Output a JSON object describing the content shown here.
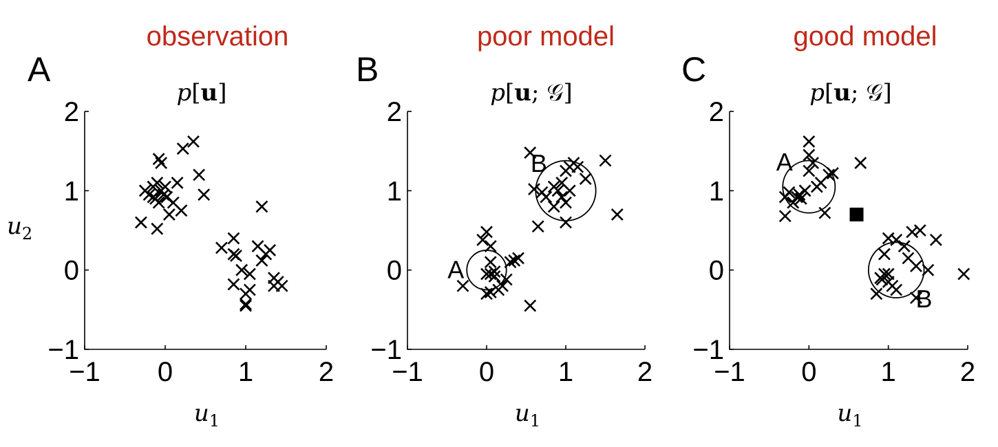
{
  "chart_data": [
    {
      "type": "scatter",
      "panel_letter": "A",
      "heading": "observation",
      "title_parts": [
        {
          "t": "p",
          "s": "i"
        },
        {
          "t": "[",
          "s": "n"
        },
        {
          "t": "u",
          "s": "b"
        },
        {
          "t": "]",
          "s": "n"
        }
      ],
      "xlabel": {
        "base": "u",
        "sub": "1"
      },
      "ylabel": {
        "base": "u",
        "sub": "2"
      },
      "xlim": [
        -1,
        2
      ],
      "ylim": [
        -1,
        2
      ],
      "xticks": [
        "−1",
        "0",
        "1",
        "2"
      ],
      "yticks": [
        "−1",
        "0",
        "1",
        "2"
      ],
      "points": [
        [
          -0.3,
          0.6
        ],
        [
          -0.25,
          1.0
        ],
        [
          -0.2,
          0.95
        ],
        [
          -0.15,
          1.05
        ],
        [
          -0.12,
          0.9
        ],
        [
          -0.1,
          1.1
        ],
        [
          -0.08,
          0.85
        ],
        [
          -0.05,
          1.0
        ],
        [
          -0.02,
          0.95
        ],
        [
          0.0,
          1.05
        ],
        [
          0.02,
          0.92
        ],
        [
          0.05,
          0.7
        ],
        [
          0.1,
          0.85
        ],
        [
          0.15,
          1.1
        ],
        [
          0.2,
          0.75
        ],
        [
          -0.1,
          0.52
        ],
        [
          -0.08,
          1.4
        ],
        [
          -0.05,
          1.35
        ],
        [
          0.22,
          1.53
        ],
        [
          0.35,
          1.62
        ],
        [
          0.42,
          1.2
        ],
        [
          0.48,
          0.95
        ],
        [
          -0.15,
          0.92
        ],
        [
          0.7,
          0.28
        ],
        [
          0.85,
          0.4
        ],
        [
          0.85,
          0.2
        ],
        [
          0.88,
          0.18
        ],
        [
          0.95,
          0.0
        ],
        [
          0.85,
          -0.18
        ],
        [
          1.0,
          -0.3
        ],
        [
          1.0,
          -0.43
        ],
        [
          1.0,
          -0.45
        ],
        [
          1.05,
          -0.05
        ],
        [
          1.05,
          -0.25
        ],
        [
          1.15,
          0.3
        ],
        [
          1.2,
          0.12
        ],
        [
          1.25,
          0.2
        ],
        [
          1.3,
          0.25
        ],
        [
          1.35,
          -0.1
        ],
        [
          1.35,
          -0.2
        ],
        [
          1.4,
          -0.15
        ],
        [
          1.45,
          -0.2
        ],
        [
          1.2,
          0.8
        ]
      ],
      "circles": [],
      "square": null
    },
    {
      "type": "scatter",
      "panel_letter": "B",
      "heading": "poor model",
      "title_parts": [
        {
          "t": "p",
          "s": "i"
        },
        {
          "t": "[",
          "s": "n"
        },
        {
          "t": "u",
          "s": "b"
        },
        {
          "t": "; ",
          "s": "n"
        },
        {
          "t": "𝒢",
          "s": "n"
        },
        {
          "t": "]",
          "s": "n"
        }
      ],
      "xlabel": {
        "base": "u",
        "sub": "1"
      },
      "ylabel": null,
      "xlim": [
        -1,
        2
      ],
      "ylim": [
        -1,
        2
      ],
      "xticks": [
        "−1",
        "0",
        "1",
        "2"
      ],
      "yticks": [
        "−1",
        "0",
        "1",
        "2"
      ],
      "points": [
        [
          -0.3,
          -0.2
        ],
        [
          -0.05,
          0.38
        ],
        [
          0.0,
          0.48
        ],
        [
          0.05,
          0.3
        ],
        [
          0.05,
          0.1
        ],
        [
          0.0,
          -0.05
        ],
        [
          0.05,
          -0.05
        ],
        [
          0.1,
          -0.02
        ],
        [
          0.1,
          -0.08
        ],
        [
          0.0,
          -0.3
        ],
        [
          0.05,
          -0.28
        ],
        [
          0.15,
          -0.25
        ],
        [
          0.2,
          -0.2
        ],
        [
          0.25,
          -0.12
        ],
        [
          0.3,
          0.1
        ],
        [
          0.4,
          0.15
        ],
        [
          0.35,
          0.12
        ],
        [
          0.55,
          -0.45
        ],
        [
          0.55,
          1.48
        ],
        [
          0.6,
          1.02
        ],
        [
          0.65,
          0.55
        ],
        [
          0.7,
          0.98
        ],
        [
          0.75,
          0.92
        ],
        [
          0.85,
          0.8
        ],
        [
          0.9,
          1.0
        ],
        [
          0.95,
          1.1
        ],
        [
          1.0,
          0.6
        ],
        [
          1.0,
          0.85
        ],
        [
          1.05,
          1.0
        ],
        [
          1.0,
          1.25
        ],
        [
          1.05,
          1.3
        ],
        [
          1.1,
          1.35
        ],
        [
          1.15,
          1.3
        ],
        [
          1.25,
          1.15
        ],
        [
          1.5,
          1.38
        ],
        [
          1.65,
          0.7
        ],
        [
          0.85,
          1.05
        ],
        [
          0.95,
          0.92
        ]
      ],
      "circles": [
        {
          "label": "A",
          "cx": 0.0,
          "cy": 0.0,
          "r": 0.25,
          "label_side": "left"
        },
        {
          "label": "B",
          "cx": 1.0,
          "cy": 1.0,
          "r": 0.38,
          "label_side": "top-left"
        }
      ],
      "square": null
    },
    {
      "type": "scatter",
      "panel_letter": "C",
      "heading": "good model",
      "title_parts": [
        {
          "t": "p",
          "s": "i"
        },
        {
          "t": "[",
          "s": "n"
        },
        {
          "t": "u",
          "s": "b"
        },
        {
          "t": "; ",
          "s": "n"
        },
        {
          "t": "𝒢",
          "s": "n"
        },
        {
          "t": "]",
          "s": "n"
        }
      ],
      "xlabel": {
        "base": "u",
        "sub": "1"
      },
      "ylabel": null,
      "xlim": [
        -1,
        2
      ],
      "ylim": [
        -1,
        2
      ],
      "xticks": [
        "−1",
        "0",
        "1",
        "2"
      ],
      "yticks": [
        "−1",
        "0",
        "1",
        "2"
      ],
      "points": [
        [
          -0.3,
          0.68
        ],
        [
          -0.3,
          0.92
        ],
        [
          -0.25,
          0.98
        ],
        [
          -0.2,
          0.85
        ],
        [
          -0.15,
          0.92
        ],
        [
          -0.12,
          0.95
        ],
        [
          -0.1,
          0.9
        ],
        [
          -0.05,
          1.0
        ],
        [
          0.0,
          1.25
        ],
        [
          0.0,
          1.45
        ],
        [
          0.0,
          1.62
        ],
        [
          0.05,
          1.35
        ],
        [
          0.1,
          1.05
        ],
        [
          0.15,
          1.1
        ],
        [
          0.2,
          0.72
        ],
        [
          0.25,
          1.2
        ],
        [
          0.3,
          1.22
        ],
        [
          0.65,
          1.35
        ],
        [
          0.85,
          -0.3
        ],
        [
          0.9,
          -0.1
        ],
        [
          0.95,
          -0.05
        ],
        [
          0.95,
          0.2
        ],
        [
          1.0,
          0.4
        ],
        [
          1.0,
          -0.15
        ],
        [
          1.05,
          -0.2
        ],
        [
          1.1,
          0.38
        ],
        [
          1.1,
          -0.25
        ],
        [
          1.2,
          0.3
        ],
        [
          1.25,
          0.15
        ],
        [
          1.3,
          0.48
        ],
        [
          1.35,
          0.05
        ],
        [
          1.35,
          -0.35
        ],
        [
          1.4,
          0.5
        ],
        [
          1.5,
          0.0
        ],
        [
          1.6,
          0.38
        ],
        [
          1.95,
          -0.05
        ],
        [
          0.92,
          -0.12
        ],
        [
          1.0,
          -0.05
        ]
      ],
      "circles": [
        {
          "label": "A",
          "cx": 0.0,
          "cy": 1.05,
          "r": 0.33,
          "label_side": "top-left"
        },
        {
          "label": "B",
          "cx": 1.1,
          "cy": 0.0,
          "r": 0.35,
          "label_side": "bottom-right"
        }
      ],
      "square": {
        "x": 0.6,
        "y": 0.7
      }
    }
  ]
}
